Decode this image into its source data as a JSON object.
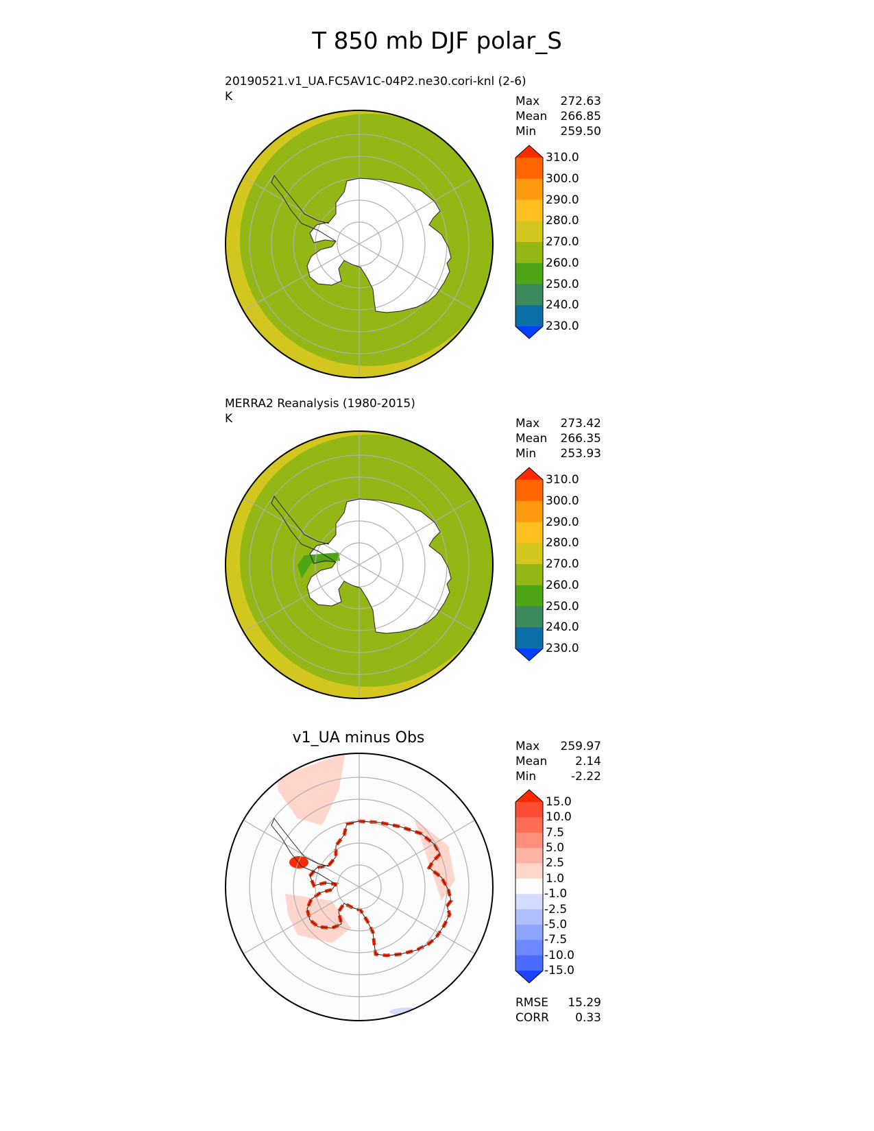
{
  "figure_title": "T 850 mb DJF polar_S",
  "panels": [
    {
      "title_line1": "20190521.v1_UA.FC5AV1C-04P2.ne30.cori-knl (2-6)",
      "units": "K",
      "stats": {
        "max_label": "Max",
        "max": "272.63",
        "mean_label": "Mean",
        "mean": "266.85",
        "min_label": "Min",
        "min": "259.50"
      }
    },
    {
      "title_line1": "MERRA2 Reanalysis (1980-2015)",
      "units": "K",
      "stats": {
        "max_label": "Max",
        "max": "273.42",
        "mean_label": "Mean",
        "mean": "266.35",
        "min_label": "Min",
        "min": "253.93"
      }
    },
    {
      "title_center": "v1_UA minus Obs",
      "stats": {
        "max_label": "Max",
        "max": "259.97",
        "mean_label": "Mean",
        "mean": "2.14",
        "min_label": "Min",
        "min": "-2.22"
      },
      "metrics": {
        "rmse_label": "RMSE",
        "rmse": "15.29",
        "corr_label": "CORR",
        "corr": "0.33"
      }
    }
  ],
  "colorbars": {
    "abs": {
      "labels": [
        "310.0",
        "300.0",
        "290.0",
        "280.0",
        "270.0",
        "260.0",
        "250.0",
        "240.0",
        "230.0"
      ],
      "colors": [
        "#ff2a00",
        "#ff6600",
        "#ff9a10",
        "#ffc020",
        "#d3c61f",
        "#93b816",
        "#4ea516",
        "#3b8a5e",
        "#0c6fa8",
        "#0040ff"
      ]
    },
    "diff": {
      "labels": [
        "15.0",
        "10.0",
        "7.5",
        "5.0",
        "2.5",
        "1.0",
        "-1.0",
        "-2.5",
        "-5.0",
        "-7.5",
        "-10.0",
        "-15.0"
      ],
      "colors": [
        "#ff2a00",
        "#ff4d33",
        "#ff6e55",
        "#ff8f7a",
        "#ffb4a3",
        "#ffd5cc",
        "#ffffff",
        "#d4dcff",
        "#b0c0ff",
        "#8ea5ff",
        "#6d88ff",
        "#4c6bff",
        "#1e44ff"
      ]
    }
  },
  "chart_data": [
    {
      "type": "heatmap",
      "projection": "south-polar stereographic",
      "title": "20190521.v1_UA.FC5AV1C-04P2.ne30.cori-knl (2-6)",
      "units": "K",
      "max": 272.63,
      "mean": 266.85,
      "min": 259.5,
      "levels": [
        230,
        240,
        250,
        260,
        270,
        280,
        290,
        300,
        310
      ],
      "dominant_range": "260-270",
      "outer_ring_range": "270-280",
      "grid": true
    },
    {
      "type": "heatmap",
      "projection": "south-polar stereographic",
      "title": "MERRA2 Reanalysis (1980-2015)",
      "units": "K",
      "max": 273.42,
      "mean": 266.35,
      "min": 253.93,
      "levels": [
        230,
        240,
        250,
        260,
        270,
        280,
        290,
        300,
        310
      ],
      "dominant_range": "260-270",
      "outer_ring_range": "270-280",
      "grid": true
    },
    {
      "type": "heatmap",
      "projection": "south-polar stereographic",
      "title": "v1_UA minus Obs",
      "max": 259.97,
      "mean": 2.14,
      "min": -2.22,
      "rmse": 15.29,
      "corr": 0.33,
      "levels": [
        -15,
        -10,
        -7.5,
        -5,
        -2.5,
        -1,
        1,
        2.5,
        5,
        7.5,
        10,
        15
      ],
      "grid": true
    }
  ]
}
